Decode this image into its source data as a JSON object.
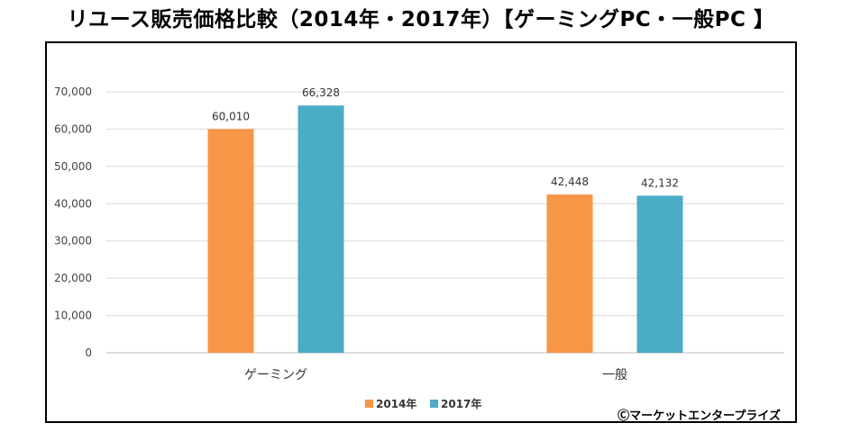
{
  "title": "リユース販売価格比較（2014年・2017年）【ゲーミングPC・一般PC 】",
  "credit": "Ⓒマーケットエンタープライズ",
  "colors": {
    "s2014": "#F79646",
    "s2017": "#4BACC6",
    "grid": "#D9D9D9",
    "axis": "#BFBFBF"
  },
  "chart_data": {
    "type": "bar",
    "categories": [
      "ゲーミング",
      "一般"
    ],
    "series": [
      {
        "name": "2014年",
        "values": [
          60010,
          42448
        ],
        "labels": [
          "60,010",
          "42,448"
        ]
      },
      {
        "name": "2017年",
        "values": [
          66328,
          42132
        ],
        "labels": [
          "66,328",
          "42,132"
        ]
      }
    ],
    "ylim": [
      0,
      70000
    ],
    "yticks": [
      0,
      10000,
      20000,
      30000,
      40000,
      50000,
      60000,
      70000
    ],
    "ytick_labels": [
      "0",
      "10,000",
      "20,000",
      "30,000",
      "40,000",
      "50,000",
      "60,000",
      "70,000"
    ],
    "grid": true,
    "legend": "bottom-center"
  }
}
